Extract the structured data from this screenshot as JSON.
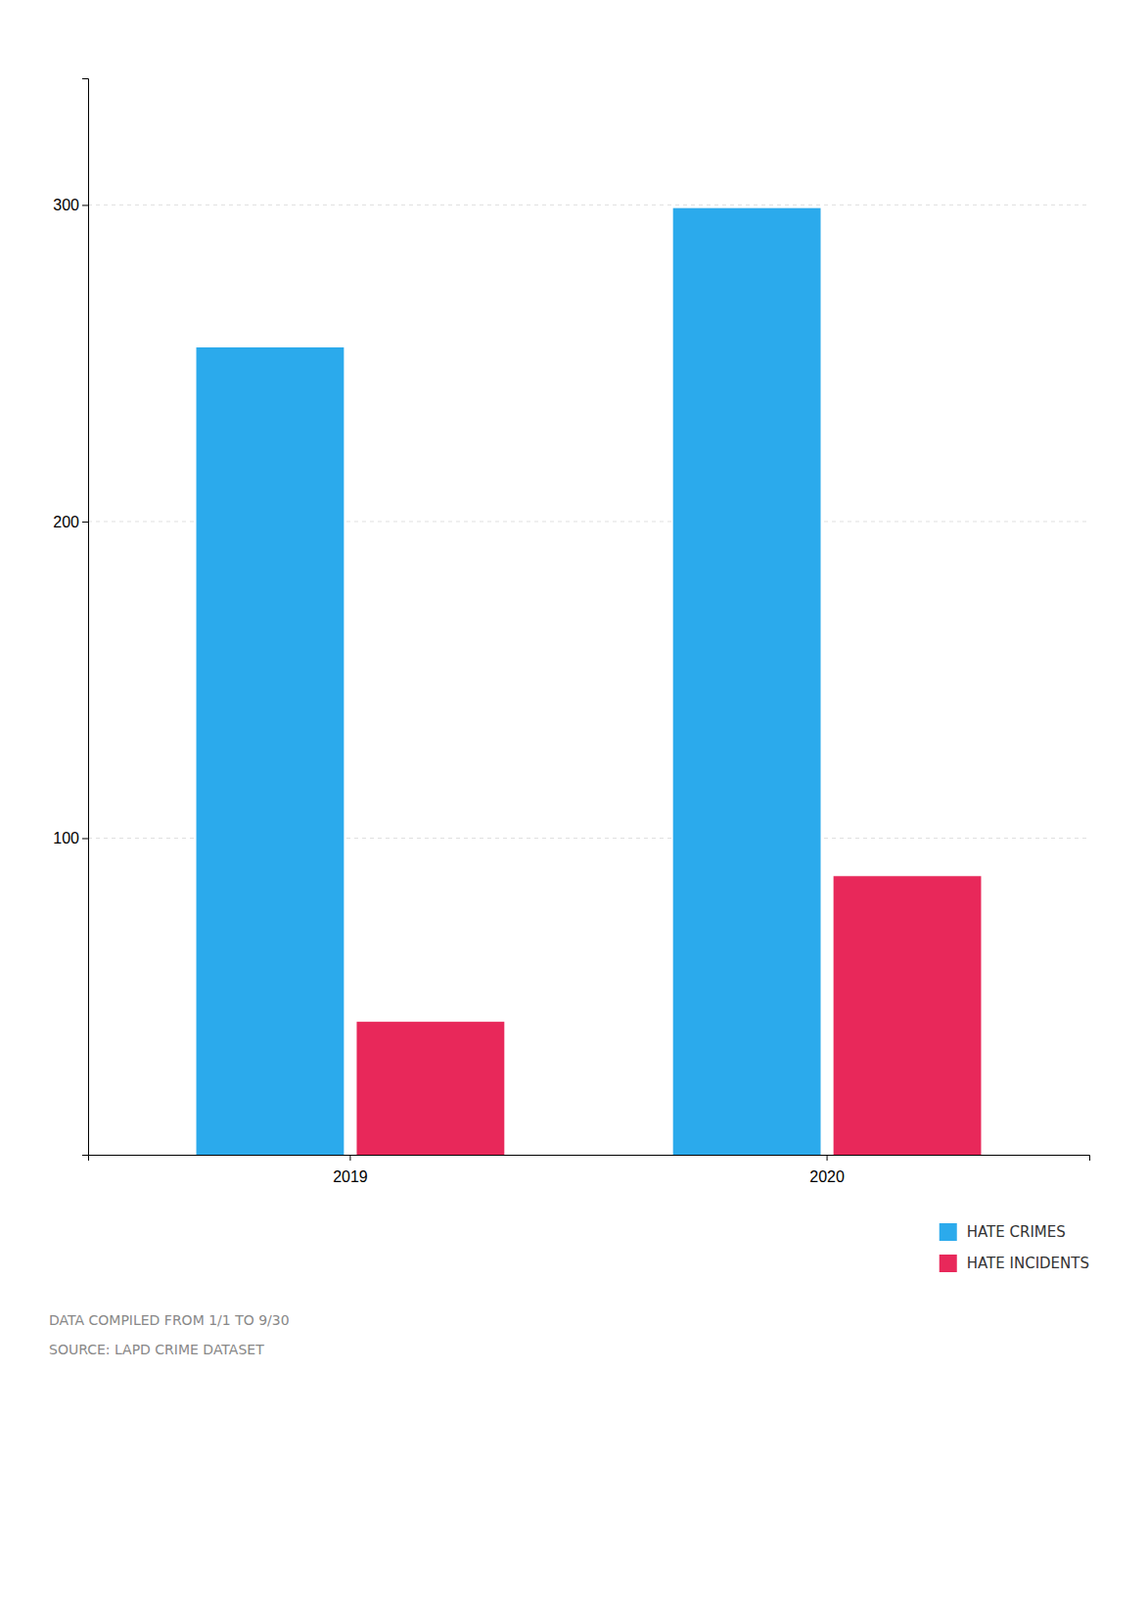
{
  "chart_data": {
    "type": "bar",
    "categories": [
      "2019",
      "2020"
    ],
    "series": [
      {
        "name": "HATE CRIMES",
        "color": "#2BAAEC",
        "values": [
          255,
          299
        ]
      },
      {
        "name": "HATE INCIDENTS",
        "color": "#E8285A",
        "values": [
          42,
          88
        ]
      }
    ],
    "ylim": [
      0,
      340
    ],
    "yticks": [
      100,
      200,
      300
    ],
    "grid": true,
    "legend": "lower right",
    "annotations": [
      "DATA COMPILED FROM 1/1 TO 9/30",
      "SOURCE: LAPD CRIME DATASET"
    ]
  }
}
